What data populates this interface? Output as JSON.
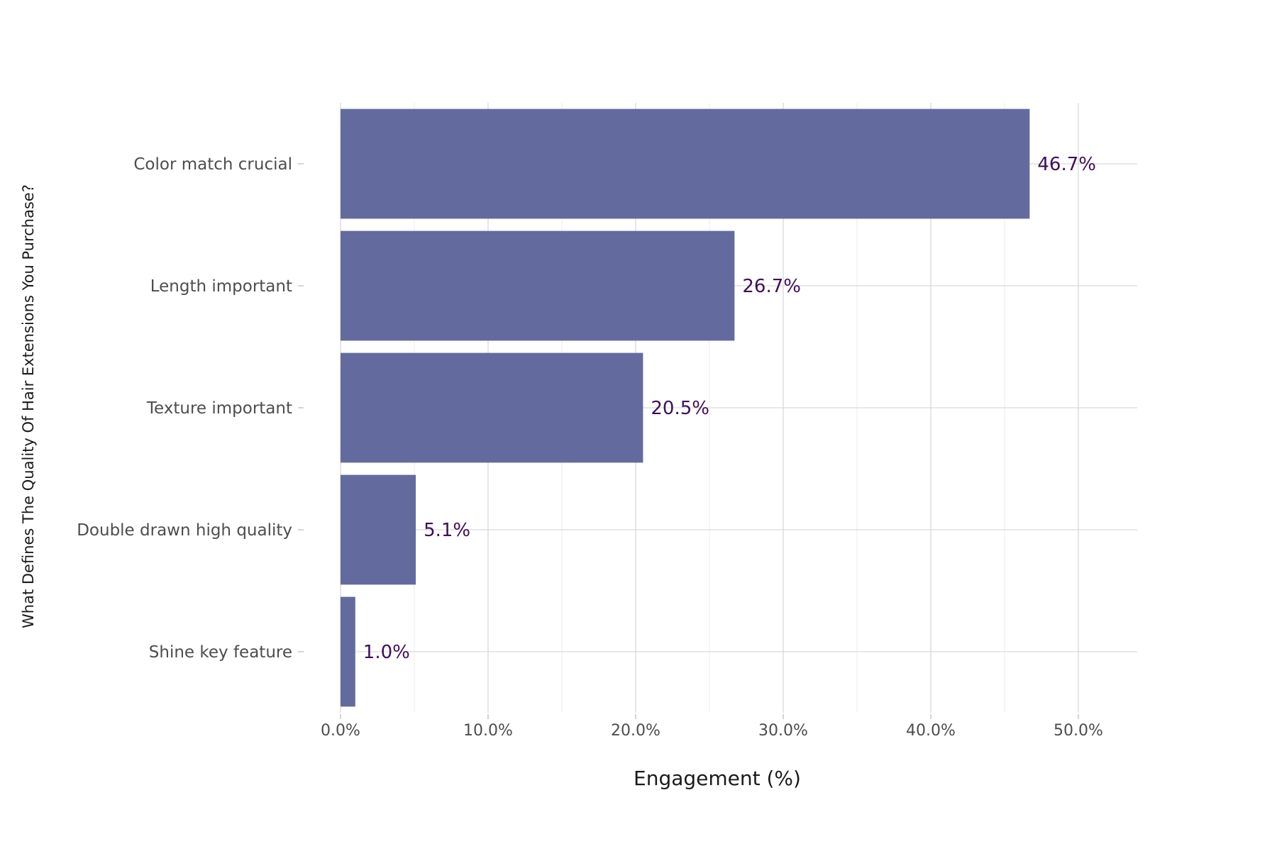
{
  "chart_data": {
    "type": "bar",
    "orientation": "horizontal",
    "title": "",
    "xlabel": "Engagement (%)",
    "ylabel": "What Defines The Quality Of Hair Extensions You Purchase?",
    "categories": [
      "Color match crucial",
      "Length important",
      "Texture important",
      "Double drawn high quality",
      "Shine key feature"
    ],
    "values": [
      46.7,
      26.7,
      20.5,
      5.1,
      1.0
    ],
    "value_labels": [
      "46.7%",
      "26.7%",
      "20.5%",
      "5.1%",
      "1.0%"
    ],
    "xlim": [
      0,
      54
    ],
    "x_ticks": [
      0,
      10,
      20,
      30,
      40,
      50
    ],
    "x_tick_labels": [
      "0.0%",
      "10.0%",
      "20.0%",
      "30.0%",
      "40.0%",
      "50.0%"
    ],
    "x_minor_ticks": [
      5,
      15,
      25,
      35,
      45
    ],
    "grid": true,
    "legend": "none",
    "colors": {
      "bar": "#636b9e",
      "value_label": "#3f0f57",
      "tick_label": "#4d4d4d",
      "axis_title": "#1a1a1a",
      "grid_major": "#d9d9d9",
      "grid_minor": "#ececec"
    }
  }
}
